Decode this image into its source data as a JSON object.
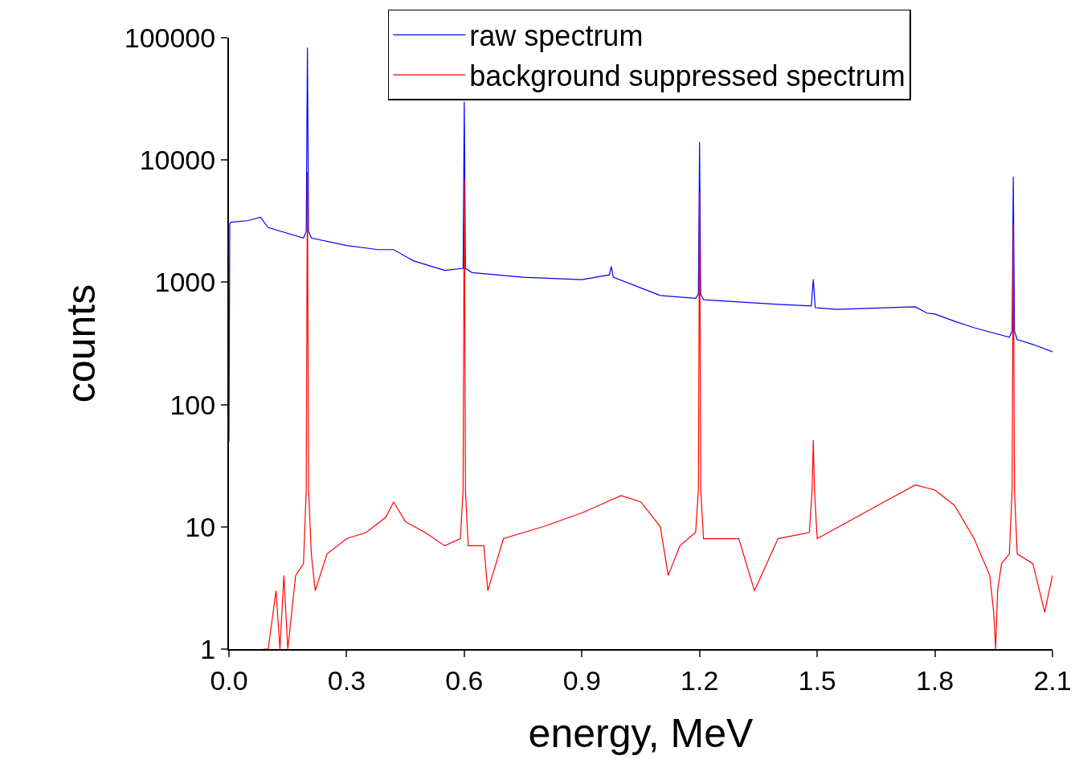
{
  "chart_data": {
    "type": "line",
    "xlabel": "energy, MeV",
    "ylabel": "counts",
    "log": "y",
    "grid": false,
    "legend": "top right",
    "marker": "none",
    "line_style": "solid",
    "xlim": [
      0,
      2.1
    ],
    "xticks": [
      {
        "value": 0,
        "label": "0.0"
      },
      0.3,
      0.6,
      0.9,
      1.2,
      1.5,
      1.8,
      2.1
    ],
    "ylim": [
      1,
      100000
    ],
    "yticks": [
      1,
      10,
      100,
      1000,
      10000,
      100000
    ],
    "series": [
      {
        "name": "raw spectrum",
        "color": "#0000ff",
        "x": [
          0,
          0.002,
          0.005,
          0.05,
          0.08,
          0.1,
          0.19,
          0.197,
          0.2,
          0.203,
          0.21,
          0.3,
          0.38,
          0.42,
          0.47,
          0.55,
          0.597,
          0.6,
          0.603,
          0.62,
          0.75,
          0.9,
          0.97,
          0.975,
          0.98,
          1.05,
          1.1,
          1.19,
          1.197,
          1.2,
          1.203,
          1.21,
          1.4,
          1.485,
          1.49,
          1.495,
          1.55,
          1.75,
          1.78,
          1.8,
          1.85,
          1.9,
          1.99,
          1.997,
          2.0,
          2.003,
          2.01,
          2.05,
          2.1
        ],
        "values": [
          50,
          3000,
          3100,
          3200,
          3400,
          2800,
          2300,
          2600,
          83000,
          2600,
          2300,
          2000,
          1850,
          1850,
          1500,
          1250,
          1300,
          30000,
          1300,
          1200,
          1100,
          1050,
          1150,
          1350,
          1100,
          900,
          780,
          740,
          800,
          14000,
          800,
          720,
          660,
          640,
          1060,
          620,
          600,
          630,
          560,
          550,
          480,
          425,
          355,
          400,
          7300,
          400,
          340,
          310,
          270
        ]
      },
      {
        "name": "background suppressed spectrum",
        "color": "#ff0000",
        "x": [
          0.088,
          0.1,
          0.12,
          0.13,
          0.14,
          0.15,
          0.16,
          0.17,
          0.19,
          0.197,
          0.2,
          0.203,
          0.21,
          0.22,
          0.25,
          0.3,
          0.35,
          0.4,
          0.42,
          0.45,
          0.5,
          0.55,
          0.59,
          0.597,
          0.6,
          0.603,
          0.61,
          0.65,
          0.66,
          0.7,
          0.8,
          0.9,
          1.0,
          1.05,
          1.1,
          1.12,
          1.15,
          1.19,
          1.197,
          1.2,
          1.203,
          1.21,
          1.3,
          1.34,
          1.4,
          1.48,
          1.487,
          1.49,
          1.493,
          1.5,
          1.6,
          1.7,
          1.75,
          1.8,
          1.85,
          1.9,
          1.94,
          1.95,
          1.955,
          1.96,
          1.97,
          1.99,
          1.997,
          2.0,
          2.003,
          2.01,
          2.05,
          2.08,
          2.1
        ],
        "values": [
          1,
          1,
          3,
          1,
          4,
          1,
          2,
          4,
          5,
          20,
          8000,
          20,
          6,
          3,
          6,
          8,
          9,
          12,
          16,
          11,
          9,
          7,
          8,
          20,
          7000,
          20,
          7,
          7,
          3,
          8,
          10,
          13,
          18,
          16,
          10,
          4,
          7,
          9,
          20,
          5400,
          20,
          8,
          8,
          3,
          8,
          9,
          20,
          51,
          20,
          8,
          12,
          18,
          22,
          20,
          15,
          8,
          4,
          2,
          1,
          3,
          5,
          6,
          20,
          2960,
          20,
          6,
          5,
          2,
          4
        ]
      }
    ]
  }
}
